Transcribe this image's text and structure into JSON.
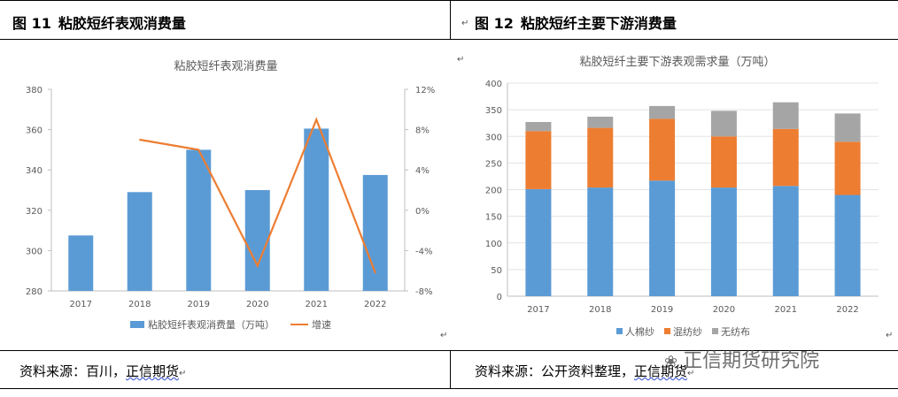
{
  "panels": [
    {
      "fig_label": "图 11",
      "fig_title": "粘胶短纤表观消费量",
      "source_label": "资料来源：百川，",
      "source_name": "正信期货",
      "chart_data": {
        "type": "bar",
        "title": "粘胶短纤表观消费量",
        "categories": [
          "2017",
          "2018",
          "2019",
          "2020",
          "2021",
          "2022"
        ],
        "series": [
          {
            "name": "粘胶短纤表观消费量（万吨）",
            "values": [
              307.5,
              329,
              350,
              330,
              360.5,
              337.5
            ],
            "color": "#5b9bd5",
            "axis": "left"
          },
          {
            "name": "增速",
            "type": "line",
            "values": [
              null,
              7,
              6,
              -5.5,
              9,
              -6.2
            ],
            "color": "#ed7d31",
            "axis": "right"
          }
        ],
        "ylim": [
          280,
          380
        ],
        "yticks": [
          "280",
          "300",
          "320",
          "340",
          "360",
          "380"
        ],
        "y2lim": [
          -8,
          12
        ],
        "y2ticks": [
          "-8%",
          "-4%",
          "0%",
          "4%",
          "8%",
          "12%"
        ],
        "grid": false,
        "legend": "bottom"
      }
    },
    {
      "fig_label": "图 12",
      "fig_title": "粘胶短纤主要下游消费量",
      "source_label": "资料来源：公开资料整理，",
      "source_name": "正信期货",
      "chart_data": {
        "type": "bar",
        "stacked": true,
        "title": "粘胶短纤主要下游表观需求量（万吨）",
        "categories": [
          "2017",
          "2018",
          "2019",
          "2020",
          "2021",
          "2022"
        ],
        "series": [
          {
            "name": "人棉纱",
            "values": [
              201,
              204,
              217,
              204,
              207,
              190
            ],
            "color": "#5b9bd5"
          },
          {
            "name": "混纺纱",
            "values": [
              109,
              112,
              116,
              96,
              107,
              100
            ],
            "color": "#ed7d31"
          },
          {
            "name": "无纺布",
            "values": [
              17,
              21,
              24,
              48,
              50,
              53
            ],
            "color": "#a5a5a5"
          }
        ],
        "ylim": [
          0,
          400
        ],
        "yticks": [
          "0",
          "50",
          "100",
          "150",
          "200",
          "250",
          "300",
          "350",
          "400"
        ],
        "grid": true,
        "legend": "bottom"
      }
    }
  ],
  "watermark": "正信期货研究院",
  "paragraph_mark": "↵"
}
